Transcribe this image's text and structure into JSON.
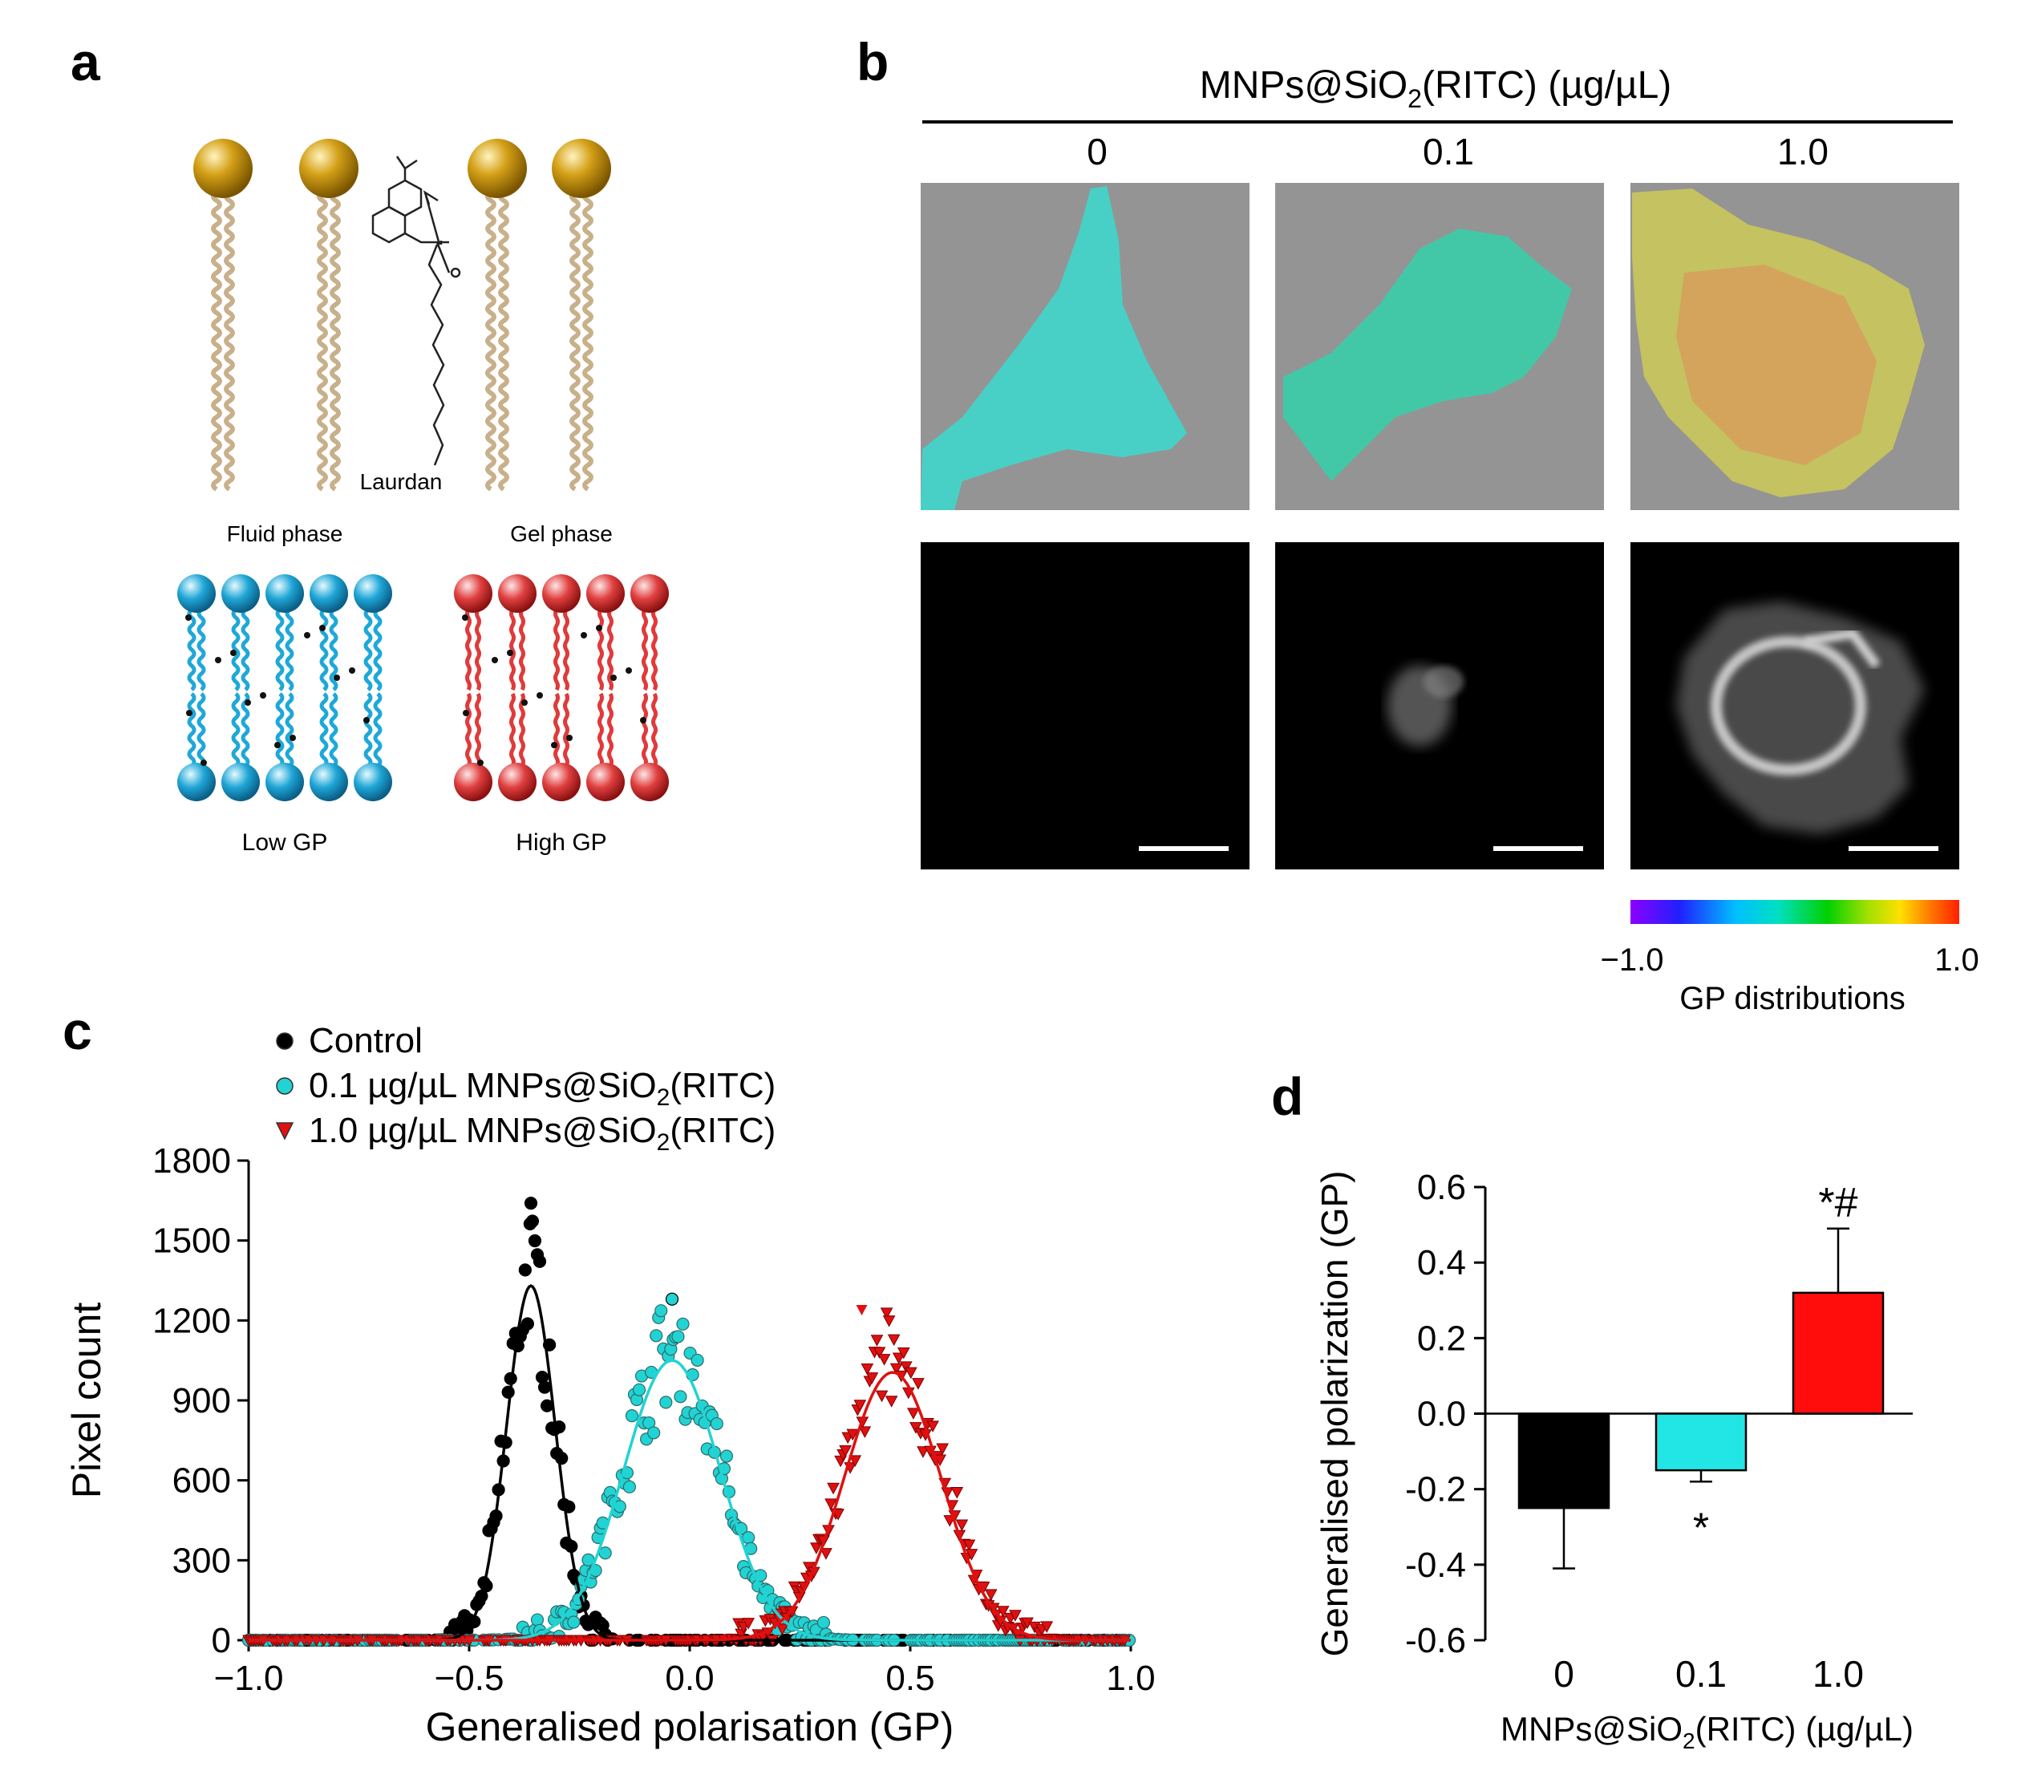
{
  "panel_letters": {
    "a": "a",
    "b": "b",
    "c": "c",
    "d": "d"
  },
  "panel_a": {
    "laurdan": "Laurdan",
    "fluid_phase": "Fluid phase",
    "gel_phase": "Gel phase",
    "low_gp": "Low GP",
    "high_gp": "High GP",
    "colors": {
      "head_gold": "#b8860b",
      "tail_gold": "#c8b08a",
      "fluid_blue": "#1ea8d8",
      "gel_red": "#e03a3a"
    }
  },
  "panel_b": {
    "title_main": "MNPs@SiO",
    "title_sub": "2",
    "title_rest": "(RITC) (µg/µL)",
    "concentrations": [
      "0",
      "0.1",
      "1.0"
    ],
    "colorbar_min": "−1.0",
    "colorbar_max": "1.0",
    "colorbar_label": "GP distributions"
  },
  "chart_data": [
    {
      "type": "scatter",
      "panel": "c",
      "xlabel": "Generalised polarisation (GP)",
      "ylabel": "Pixel count",
      "xlim": [
        -1.0,
        1.0
      ],
      "ylim": [
        0,
        1800
      ],
      "xticks": [
        "−1.0",
        "−0.5",
        "0.0",
        "0.5",
        "1.0"
      ],
      "yticks": [
        "0",
        "300",
        "600",
        "900",
        "1200",
        "1500",
        "1800"
      ],
      "legend": [
        {
          "label_pre": "Control",
          "label_sub": "",
          "label_post": ""
        },
        {
          "label_pre": "0.1 µg/µL MNPs@SiO",
          "label_sub": "2",
          "label_post": "(RITC)"
        },
        {
          "label_pre": "1.0 µg/µL MNPs@SiO",
          "label_sub": "2",
          "label_post": "(RITC)"
        }
      ],
      "series": [
        {
          "name": "Control",
          "color": "#000000",
          "marker": "circle",
          "fit": {
            "mean": -0.36,
            "sigma": 0.055,
            "peak": 1330
          },
          "max_point": 1640
        },
        {
          "name": "0.1 µg/µL",
          "color": "#22d3d3",
          "marker": "circle",
          "fit": {
            "mean": -0.04,
            "sigma": 0.11,
            "peak": 1050
          },
          "max_point": 1280
        },
        {
          "name": "1.0 µg/µL",
          "color": "#e01010",
          "marker": "triangle-down",
          "fit": {
            "mean": 0.46,
            "sigma": 0.11,
            "peak": 1005
          },
          "max_point": 1240
        }
      ]
    },
    {
      "type": "bar",
      "panel": "d",
      "ylabel": "Generalised polarization (GP)",
      "xlabel_pre": "MNPs@SiO",
      "xlabel_sub": "2",
      "xlabel_post": "(RITC) (µg/µL)",
      "categories": [
        "0",
        "0.1",
        "1.0"
      ],
      "values": [
        -0.25,
        -0.15,
        0.32
      ],
      "errors": [
        0.16,
        0.03,
        0.17
      ],
      "colors": [
        "#000000",
        "#22e6e6",
        "#ff0d0d"
      ],
      "annotations": [
        "",
        "*",
        "*#"
      ],
      "ylim": [
        -0.6,
        0.6
      ],
      "yticks": [
        "0.6",
        "0.4",
        "0.2",
        "0.0",
        "-0.2",
        "-0.4",
        "-0.6"
      ]
    }
  ]
}
